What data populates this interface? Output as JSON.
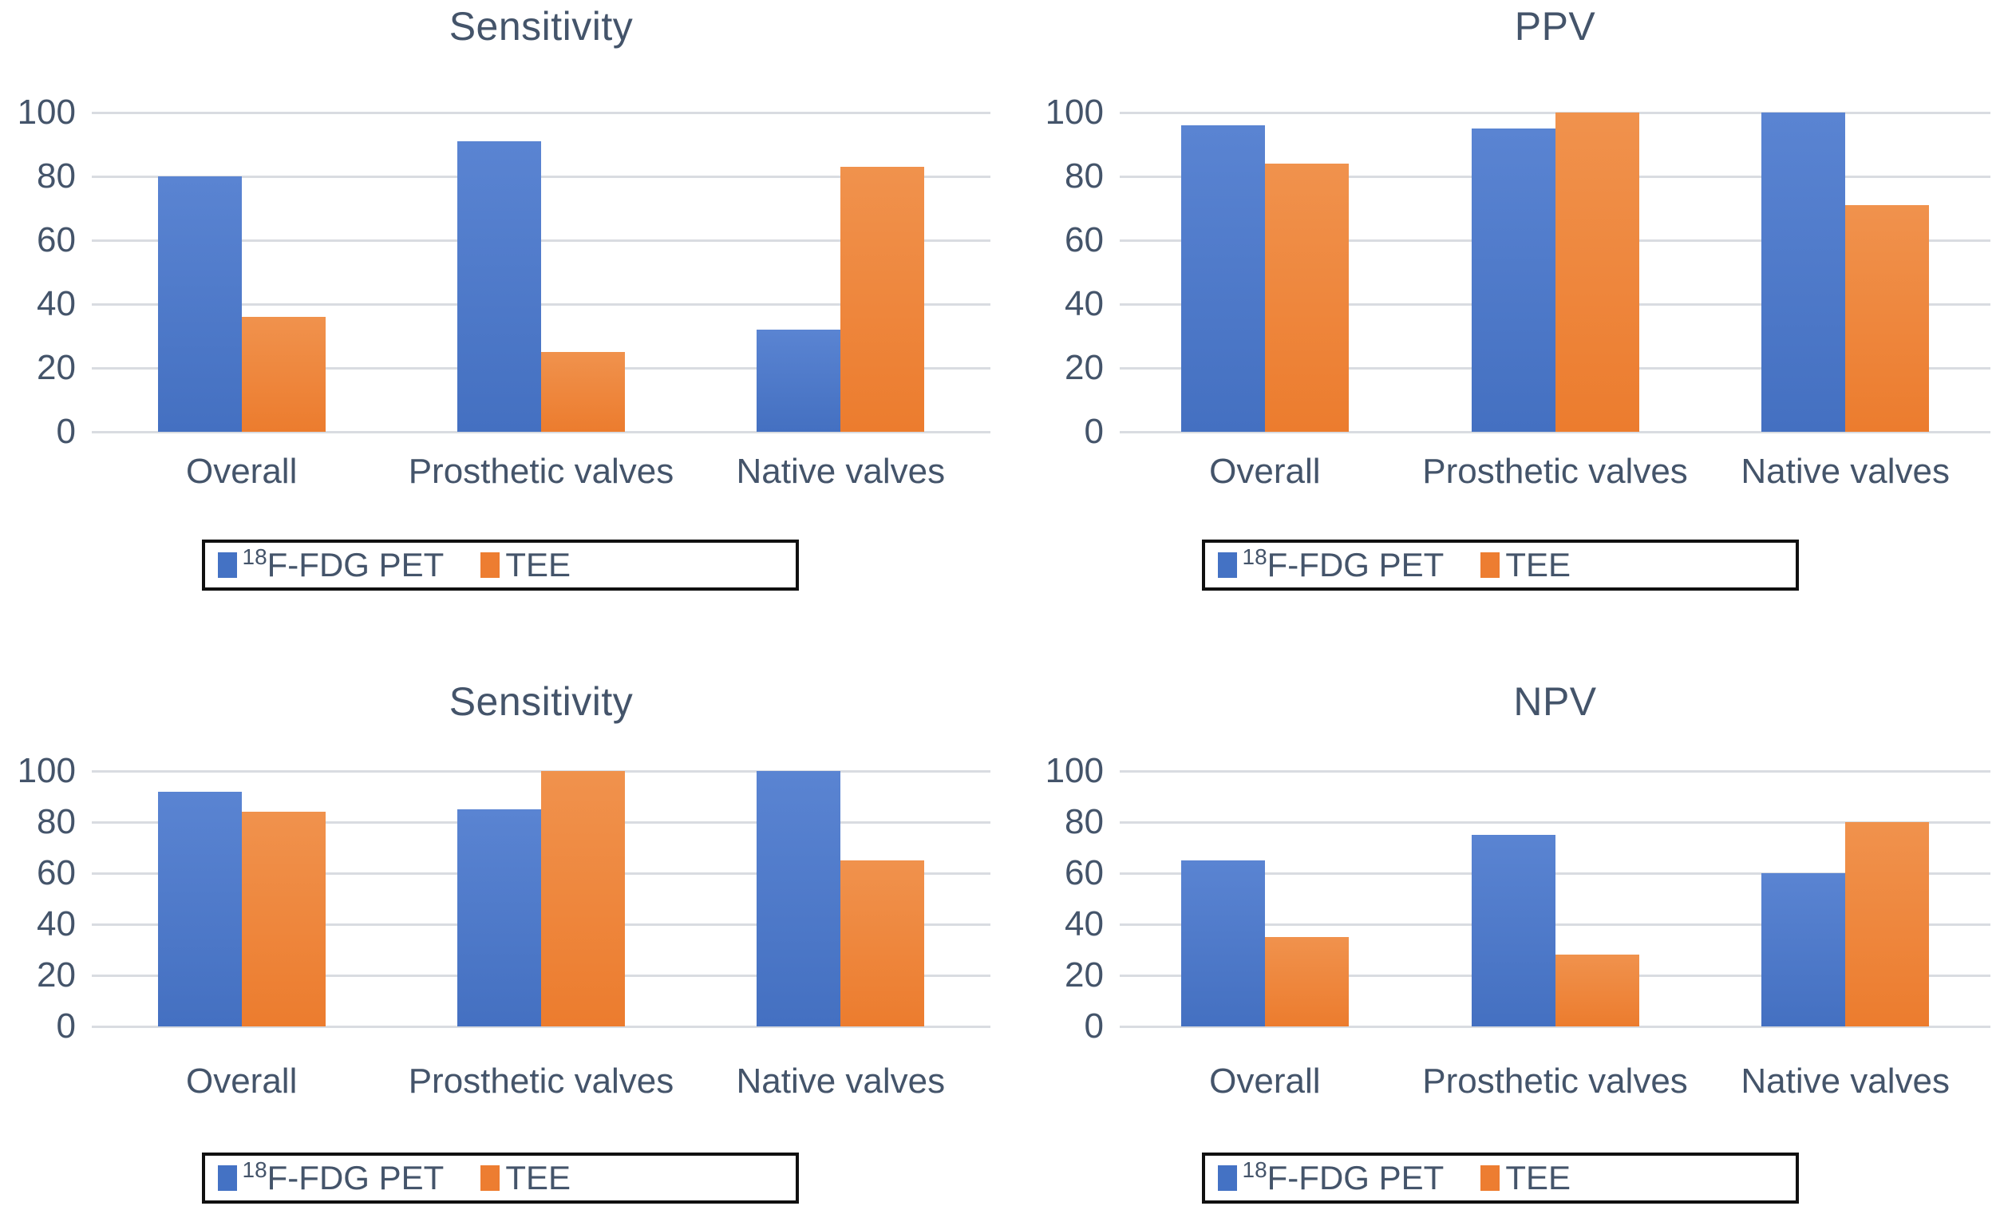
{
  "colors": {
    "pet_blue": "#4472C4",
    "tee_orange": "#ED7D31",
    "text": "#44546A",
    "gridline": "#D9DCE1",
    "legend_border": "#101010",
    "background": "#FFFFFF"
  },
  "legend": {
    "items": [
      {
        "sup": "18",
        "label": "F-FDG PET",
        "color": "#4472C4",
        "series_key": "pet"
      },
      {
        "sup": "",
        "label": "TEE",
        "color": "#ED7D31",
        "series_key": "tee"
      }
    ]
  },
  "chart_data": [
    {
      "type": "bar",
      "panel": "top-left",
      "title": "Sensitivity",
      "categories": [
        "Overall",
        "Prosthetic valves",
        "Native valves"
      ],
      "series": [
        {
          "name": "18F-FDG PET",
          "color": "#4472C4",
          "values": [
            80,
            91,
            32
          ]
        },
        {
          "name": "TEE",
          "color": "#ED7D31",
          "values": [
            36,
            25,
            83
          ]
        }
      ],
      "xlabel": "",
      "ylabel": "",
      "ylim": [
        0,
        100
      ],
      "yticks": [
        0,
        20,
        40,
        60,
        80,
        100
      ],
      "grid": true,
      "legend_position": "bottom"
    },
    {
      "type": "bar",
      "panel": "top-right",
      "title": "PPV",
      "categories": [
        "Overall",
        "Prosthetic valves",
        "Native valves"
      ],
      "series": [
        {
          "name": "18F-FDG PET",
          "color": "#4472C4",
          "values": [
            96,
            95,
            100
          ]
        },
        {
          "name": "TEE",
          "color": "#ED7D31",
          "values": [
            84,
            100,
            71
          ]
        }
      ],
      "xlabel": "",
      "ylabel": "",
      "ylim": [
        0,
        100
      ],
      "yticks": [
        0,
        20,
        40,
        60,
        80,
        100
      ],
      "grid": true,
      "legend_position": "bottom"
    },
    {
      "type": "bar",
      "panel": "bottom-left",
      "title": "Sensitivity",
      "categories": [
        "Overall",
        "Prosthetic valves",
        "Native valves"
      ],
      "series": [
        {
          "name": "18F-FDG PET",
          "color": "#4472C4",
          "values": [
            92,
            85,
            100
          ]
        },
        {
          "name": "TEE",
          "color": "#ED7D31",
          "values": [
            84,
            100,
            65
          ]
        }
      ],
      "xlabel": "",
      "ylabel": "",
      "ylim": [
        0,
        100
      ],
      "yticks": [
        0,
        20,
        40,
        60,
        80,
        100
      ],
      "grid": true,
      "legend_position": "bottom"
    },
    {
      "type": "bar",
      "panel": "bottom-right",
      "title": "NPV",
      "categories": [
        "Overall",
        "Prosthetic valves",
        "Native valves"
      ],
      "series": [
        {
          "name": "18F-FDG PET",
          "color": "#4472C4",
          "values": [
            65,
            75,
            60
          ]
        },
        {
          "name": "TEE",
          "color": "#ED7D31",
          "values": [
            35,
            28,
            80
          ]
        }
      ],
      "xlabel": "",
      "ylabel": "",
      "ylim": [
        0,
        100
      ],
      "yticks": [
        0,
        20,
        40,
        60,
        80,
        100
      ],
      "grid": true,
      "legend_position": "bottom"
    }
  ]
}
